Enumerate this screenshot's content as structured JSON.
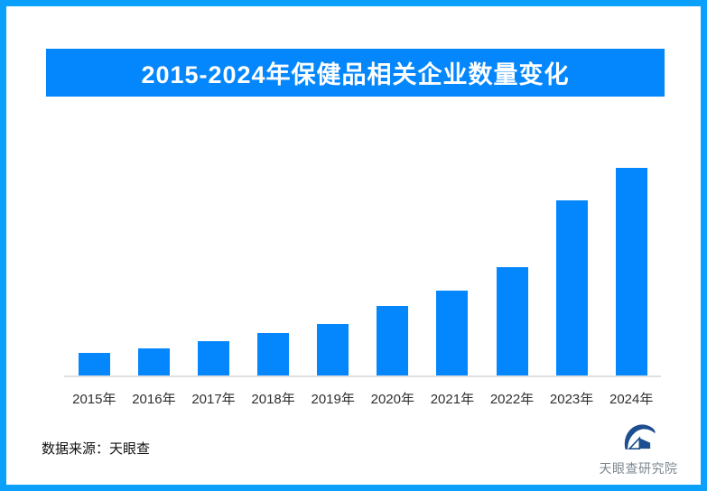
{
  "page": {
    "frame_border_color": "#0aa0fc",
    "background_color": "#ffffff"
  },
  "header": {
    "title": "2015-2024年保健品相关企业数量变化",
    "banner_color": "#0487fc",
    "title_color": "#ffffff"
  },
  "chart_data": {
    "type": "bar",
    "title": "2015-2024年保健品相关企业数量变化",
    "categories": [
      "2015年",
      "2016年",
      "2017年",
      "2018年",
      "2019年",
      "2020年",
      "2021年",
      "2022年",
      "2023年",
      "2024年"
    ],
    "values_relative_pct": [
      11.2,
      13.5,
      16.9,
      20.9,
      25.0,
      33.7,
      41.2,
      52.3,
      84.3,
      100
    ],
    "xlabel": "",
    "ylabel": "",
    "grid": false,
    "legend_shown": false,
    "value_axis_shown": false,
    "data_labels_shown": false,
    "bar_color": "#0487fc",
    "axis_line_color": "#e0e0e0",
    "note": "no numeric axis or data labels are visible; values are relative bar heights normalized to 2024 = 100"
  },
  "footer": {
    "source_label": "数据来源：天眼查",
    "brand_name": "天眼查研究院",
    "logo_color": "#1d4e8f",
    "brand_text_color": "#7d8790"
  }
}
